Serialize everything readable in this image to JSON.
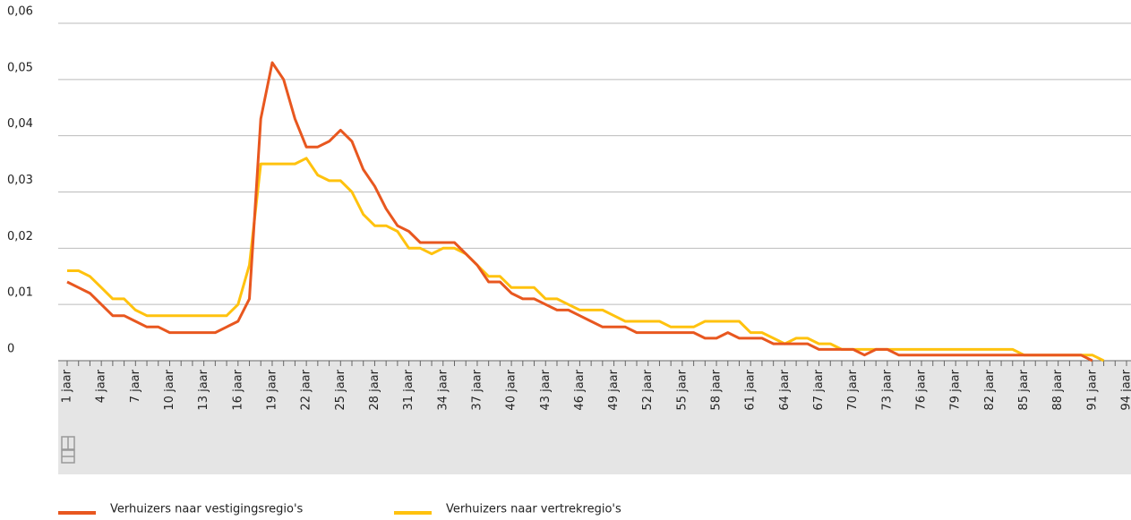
{
  "chart_data": {
    "type": "line",
    "categories": [
      "1 jaar",
      null,
      null,
      "4 jaar",
      null,
      null,
      "7 jaar",
      null,
      null,
      "10 jaar",
      null,
      null,
      "13 jaar",
      null,
      null,
      "16 jaar",
      null,
      null,
      "19 jaar",
      null,
      null,
      "22 jaar",
      null,
      null,
      "25 jaar",
      null,
      null,
      "28 jaar",
      null,
      null,
      "31 jaar",
      null,
      null,
      "34 jaar",
      null,
      null,
      "37 jaar",
      null,
      null,
      "40 jaar",
      null,
      null,
      "43 jaar",
      null,
      null,
      "46 jaar",
      null,
      null,
      "49 jaar",
      null,
      null,
      "52 jaar",
      null,
      null,
      "55 jaar",
      null,
      null,
      "58 jaar",
      null,
      null,
      "61 jaar",
      null,
      null,
      "64 jaar",
      null,
      null,
      "67 jaar",
      null,
      null,
      "70 jaar",
      null,
      null,
      "73 jaar",
      null,
      null,
      "76 jaar",
      null,
      null,
      "79 jaar",
      null,
      null,
      "82 jaar",
      null,
      null,
      "85 jaar",
      null,
      null,
      "88 jaar",
      null,
      null,
      "91 jaar",
      null,
      null,
      "94 jaar"
    ],
    "series": [
      {
        "name": "Verhuizers naar vestigingsregio's",
        "color": "#e8571f",
        "values": [
          0.014,
          0.013,
          0.012,
          0.01,
          0.008,
          0.008,
          0.007,
          0.006,
          0.006,
          0.005,
          0.005,
          0.005,
          0.005,
          0.005,
          0.006,
          0.007,
          0.011,
          0.043,
          0.053,
          0.05,
          0.043,
          0.038,
          0.038,
          0.039,
          0.041,
          0.039,
          0.034,
          0.031,
          0.027,
          0.024,
          0.023,
          0.021,
          0.021,
          0.021,
          0.021,
          0.019,
          0.017,
          0.014,
          0.014,
          0.012,
          0.011,
          0.011,
          0.01,
          0.009,
          0.009,
          0.008,
          0.007,
          0.006,
          0.006,
          0.006,
          0.005,
          0.005,
          0.005,
          0.005,
          0.005,
          0.005,
          0.004,
          0.004,
          0.005,
          0.004,
          0.004,
          0.004,
          0.003,
          0.003,
          0.003,
          0.003,
          0.002,
          0.002,
          0.002,
          0.002,
          0.001,
          0.002,
          0.002,
          0.001,
          0.001,
          0.001,
          0.001,
          0.001,
          0.001,
          0.001,
          0.001,
          0.001,
          0.001,
          0.001,
          0.001,
          0.001,
          0.001,
          0.001,
          0.001,
          0.001,
          0,
          null,
          null,
          null
        ]
      },
      {
        "name": "Verhuizers naar vertrekregio's",
        "color": "#ffc20e",
        "values": [
          0.016,
          0.016,
          0.015,
          0.013,
          0.011,
          0.011,
          0.009,
          0.008,
          0.008,
          0.008,
          0.008,
          0.008,
          0.008,
          0.008,
          0.008,
          0.01,
          0.017,
          0.035,
          0.035,
          0.035,
          0.035,
          0.036,
          0.033,
          0.032,
          0.032,
          0.03,
          0.026,
          0.024,
          0.024,
          0.023,
          0.02,
          0.02,
          0.019,
          0.02,
          0.02,
          0.019,
          0.017,
          0.015,
          0.015,
          0.013,
          0.013,
          0.013,
          0.011,
          0.011,
          0.01,
          0.009,
          0.009,
          0.009,
          0.008,
          0.007,
          0.007,
          0.007,
          0.007,
          0.006,
          0.006,
          0.006,
          0.007,
          0.007,
          0.007,
          0.007,
          0.005,
          0.005,
          0.004,
          0.003,
          0.004,
          0.004,
          0.003,
          0.003,
          0.002,
          0.002,
          0.002,
          0.002,
          0.002,
          0.002,
          0.002,
          0.002,
          0.002,
          0.002,
          0.002,
          0.002,
          0.002,
          0.002,
          0.002,
          0.002,
          0.001,
          0.001,
          0.001,
          0.001,
          0.001,
          0.001,
          0.001,
          0,
          null,
          null
        ]
      }
    ],
    "ylim": [
      0,
      0.06
    ],
    "yticks": [
      0,
      {
        "value": 0.01,
        "label": "0,01"
      },
      {
        "value": 0.02,
        "label": "0,02"
      },
      {
        "value": 0.03,
        "label": "0,03"
      },
      {
        "value": 0.04,
        "label": "0,04"
      },
      {
        "value": 0.05,
        "label": "0,05"
      },
      {
        "value": 0.06,
        "label": "0,06"
      }
    ],
    "grid": true
  }
}
